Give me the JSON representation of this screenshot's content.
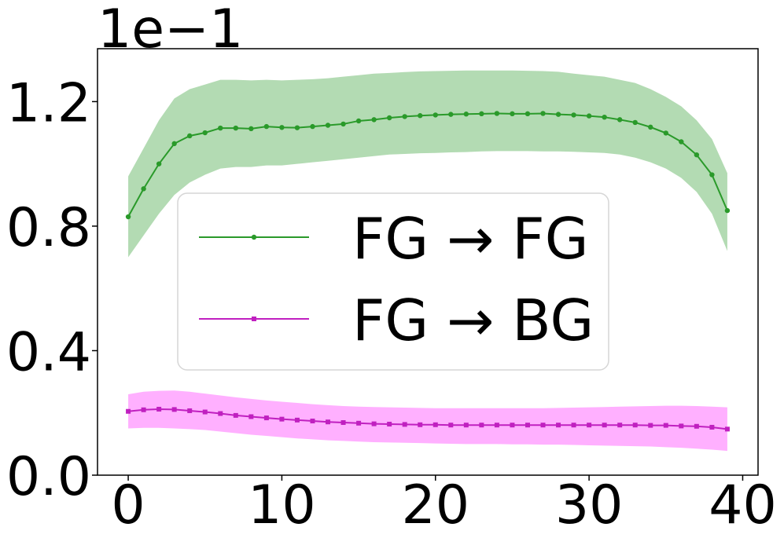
{
  "chart_data": {
    "type": "line",
    "title": "",
    "xlabel": "",
    "ylabel": "",
    "y_offset_text": "1e−1",
    "xlim": [
      -2,
      41
    ],
    "ylim": [
      0,
      1.37
    ],
    "x_ticks": [
      0,
      10,
      20,
      30,
      40
    ],
    "x_tick_labels": [
      "0",
      "10",
      "20",
      "30",
      "40"
    ],
    "y_ticks": [
      0.0,
      0.4,
      0.8,
      1.2
    ],
    "y_tick_labels": [
      "0.0",
      "0.4",
      "0.8",
      "1.2"
    ],
    "grid": false,
    "legend_position": "center-left",
    "x": [
      0,
      1,
      2,
      3,
      4,
      5,
      6,
      7,
      8,
      9,
      10,
      11,
      12,
      13,
      14,
      15,
      16,
      17,
      18,
      19,
      20,
      21,
      22,
      23,
      24,
      25,
      26,
      27,
      28,
      29,
      30,
      31,
      32,
      33,
      34,
      35,
      36,
      37,
      38,
      39
    ],
    "series": [
      {
        "name": "FG → FG",
        "color": "#2a9a2a",
        "band_color": "#b3dbb3",
        "marker": "circle",
        "values": [
          0.83,
          0.92,
          1.0,
          1.065,
          1.09,
          1.1,
          1.115,
          1.115,
          1.113,
          1.12,
          1.117,
          1.116,
          1.12,
          1.124,
          1.128,
          1.138,
          1.142,
          1.148,
          1.152,
          1.155,
          1.157,
          1.159,
          1.16,
          1.161,
          1.162,
          1.161,
          1.161,
          1.162,
          1.159,
          1.157,
          1.154,
          1.15,
          1.142,
          1.133,
          1.118,
          1.099,
          1.071,
          1.029,
          0.965,
          0.85
        ],
        "lower": [
          0.7,
          0.77,
          0.84,
          0.9,
          0.94,
          0.965,
          0.985,
          0.99,
          0.99,
          0.995,
          0.995,
          1.0,
          1.005,
          1.01,
          1.015,
          1.02,
          1.025,
          1.03,
          1.032,
          1.034,
          1.035,
          1.037,
          1.038,
          1.04,
          1.041,
          1.041,
          1.041,
          1.04,
          1.04,
          1.039,
          1.037,
          1.035,
          1.03,
          1.02,
          1.005,
          0.985,
          0.955,
          0.91,
          0.84,
          0.72
        ],
        "upper": [
          0.96,
          1.05,
          1.14,
          1.21,
          1.24,
          1.255,
          1.27,
          1.27,
          1.268,
          1.27,
          1.268,
          1.27,
          1.272,
          1.275,
          1.28,
          1.285,
          1.29,
          1.292,
          1.295,
          1.297,
          1.298,
          1.299,
          1.3,
          1.3,
          1.3,
          1.3,
          1.299,
          1.298,
          1.296,
          1.29,
          1.285,
          1.28,
          1.27,
          1.26,
          1.24,
          1.215,
          1.185,
          1.14,
          1.08,
          0.97
        ]
      },
      {
        "name": "FG → BG",
        "color": "#c020c0",
        "band_color": "#ffb0ff",
        "marker": "square",
        "values": [
          0.205,
          0.21,
          0.212,
          0.211,
          0.207,
          0.203,
          0.198,
          0.192,
          0.188,
          0.184,
          0.18,
          0.177,
          0.174,
          0.171,
          0.169,
          0.167,
          0.165,
          0.164,
          0.163,
          0.162,
          0.162,
          0.161,
          0.161,
          0.161,
          0.161,
          0.161,
          0.161,
          0.161,
          0.161,
          0.161,
          0.161,
          0.161,
          0.161,
          0.161,
          0.16,
          0.16,
          0.158,
          0.157,
          0.154,
          0.148
        ],
        "lower": [
          0.15,
          0.152,
          0.152,
          0.15,
          0.148,
          0.145,
          0.14,
          0.135,
          0.13,
          0.126,
          0.122,
          0.118,
          0.115,
          0.112,
          0.11,
          0.108,
          0.106,
          0.105,
          0.104,
          0.103,
          0.102,
          0.101,
          0.1,
          0.1,
          0.1,
          0.099,
          0.099,
          0.098,
          0.098,
          0.097,
          0.096,
          0.095,
          0.094,
          0.093,
          0.092,
          0.09,
          0.088,
          0.085,
          0.082,
          0.078
        ],
        "upper": [
          0.26,
          0.268,
          0.271,
          0.272,
          0.268,
          0.262,
          0.256,
          0.25,
          0.245,
          0.24,
          0.236,
          0.232,
          0.228,
          0.225,
          0.222,
          0.22,
          0.219,
          0.218,
          0.217,
          0.216,
          0.215,
          0.215,
          0.215,
          0.215,
          0.215,
          0.215,
          0.215,
          0.215,
          0.216,
          0.217,
          0.218,
          0.219,
          0.22,
          0.221,
          0.222,
          0.223,
          0.223,
          0.222,
          0.22,
          0.218
        ]
      }
    ]
  }
}
